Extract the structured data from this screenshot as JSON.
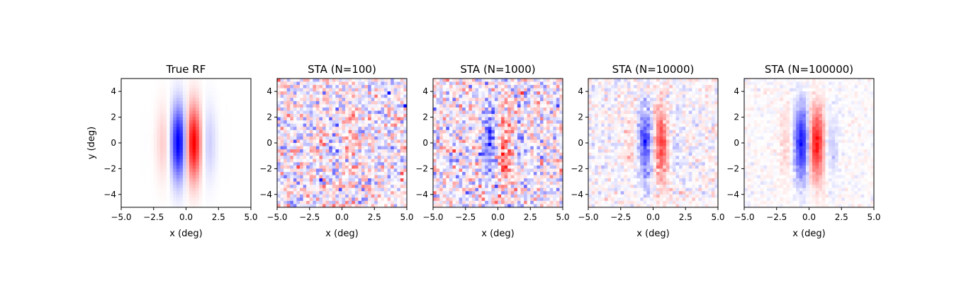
{
  "chart_data": [
    {
      "type": "heatmap",
      "title": "True RF",
      "xlabel": "x (deg)",
      "ylabel": "y (deg)",
      "colormap": "bwr",
      "xlim": [
        -5,
        5
      ],
      "ylim": [
        -5,
        5
      ],
      "grid_size": [
        40,
        40
      ],
      "xticks": [
        "−5.0",
        "−2.5",
        "0.0",
        "2.5",
        "5.0"
      ],
      "yticks": [
        "4",
        "2",
        "0",
        "−2",
        "−4"
      ],
      "N": null
    },
    {
      "type": "heatmap",
      "title": "STA (N=100)",
      "xlabel": "x (deg)",
      "ylabel": "",
      "colormap": "bwr",
      "xlim": [
        -5,
        5
      ],
      "ylim": [
        -5,
        5
      ],
      "grid_size": [
        40,
        40
      ],
      "xticks": [
        "−5.0",
        "−2.5",
        "0.0",
        "2.5",
        "5.0"
      ],
      "yticks": [
        "4",
        "2",
        "0",
        "−2",
        "−4"
      ],
      "N": 100
    },
    {
      "type": "heatmap",
      "title": "STA (N=1000)",
      "xlabel": "x (deg)",
      "ylabel": "",
      "colormap": "bwr",
      "xlim": [
        -5,
        5
      ],
      "ylim": [
        -5,
        5
      ],
      "grid_size": [
        40,
        40
      ],
      "xticks": [
        "−5.0",
        "−2.5",
        "0.0",
        "2.5",
        "5.0"
      ],
      "yticks": [
        "4",
        "2",
        "0",
        "−2",
        "−4"
      ],
      "N": 1000
    },
    {
      "type": "heatmap",
      "title": "STA (N=10000)",
      "xlabel": "x (deg)",
      "ylabel": "",
      "colormap": "bwr",
      "xlim": [
        -5,
        5
      ],
      "ylim": [
        -5,
        5
      ],
      "grid_size": [
        40,
        40
      ],
      "xticks": [
        "−5.0",
        "−2.5",
        "0.0",
        "2.5",
        "5.0"
      ],
      "yticks": [
        "4",
        "2",
        "0",
        "−2",
        "−4"
      ],
      "N": 10000
    },
    {
      "type": "heatmap",
      "title": "STA (N=100000)",
      "xlabel": "x (deg)",
      "ylabel": "",
      "colormap": "bwr",
      "xlim": [
        -5,
        5
      ],
      "ylim": [
        -5,
        5
      ],
      "grid_size": [
        40,
        40
      ],
      "xticks": [
        "−5.0",
        "−2.5",
        "0.0",
        "2.5",
        "5.0"
      ],
      "yticks": [
        "4",
        "2",
        "0",
        "−2",
        "−4"
      ],
      "N": 100000
    }
  ]
}
